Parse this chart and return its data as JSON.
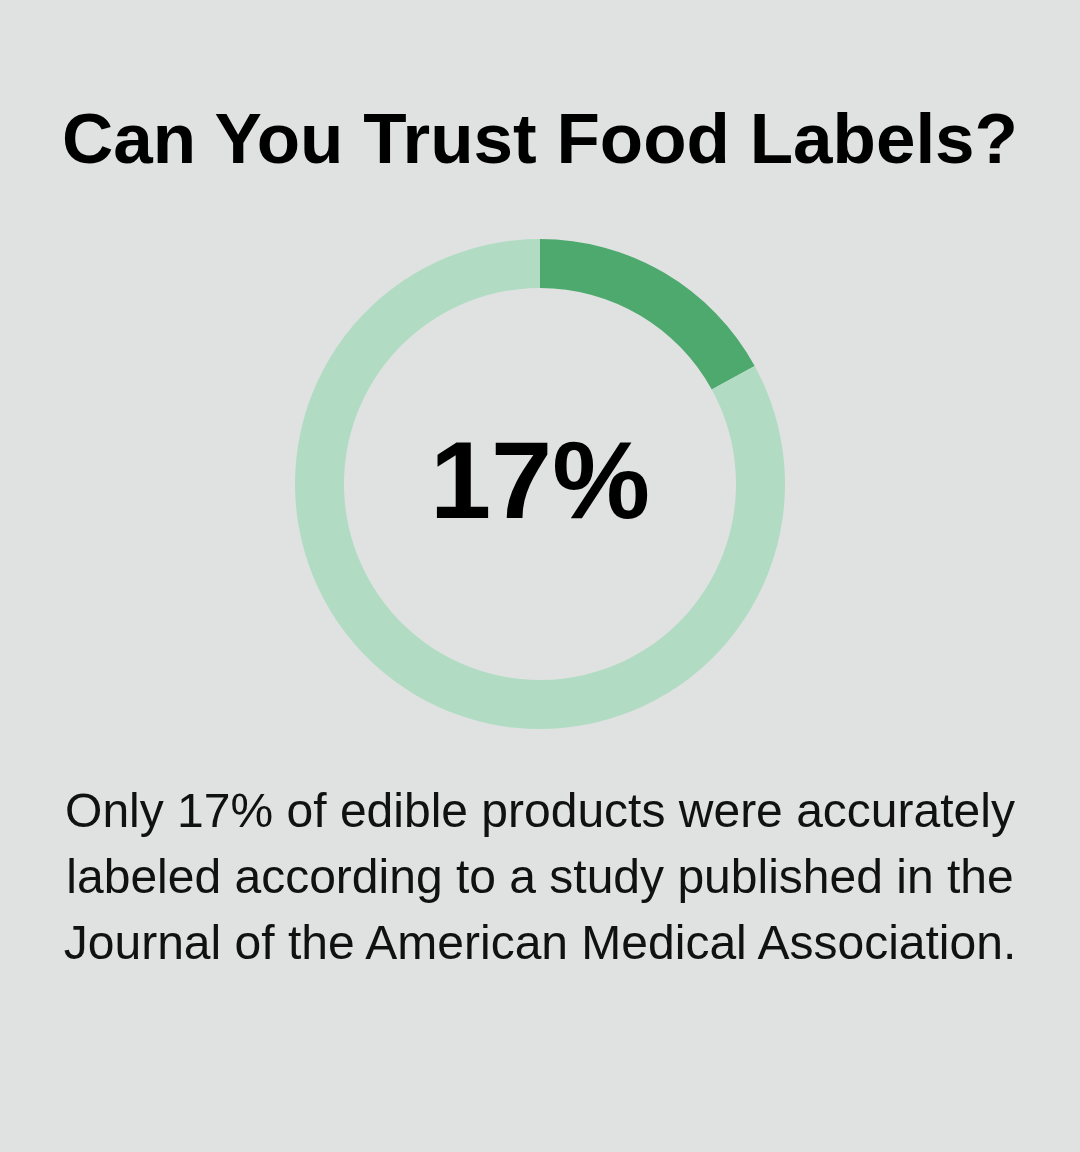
{
  "chart_data": {
    "type": "donut",
    "title": "Can You Trust Food Labels?",
    "categories": [
      null,
      null
    ],
    "values": [
      17,
      83
    ],
    "colors": [
      "#4ea96e",
      "#b1dcc3"
    ],
    "annotations": [
      "17%",
      "Only 17% of edible products were accurately labeled according to a study published in the Journal of the American Medical Association."
    ]
  }
}
